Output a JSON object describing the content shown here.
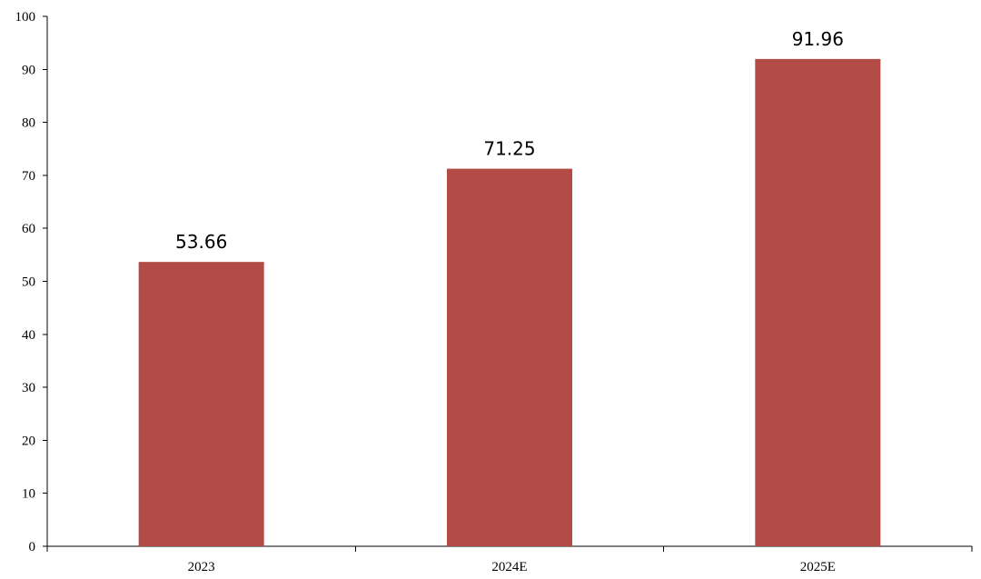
{
  "chart_data": {
    "type": "bar",
    "title": "",
    "xlabel": "",
    "ylabel": "",
    "categories": [
      "2023",
      "2024E",
      "2025E"
    ],
    "series": [
      {
        "values": [
          53.66,
          71.25,
          91.96
        ]
      }
    ],
    "data_labels": [
      "53.66",
      "71.25",
      "91.96"
    ],
    "ylim": [
      0,
      100
    ],
    "yticks": [
      0,
      10,
      20,
      30,
      40,
      50,
      60,
      70,
      80,
      90,
      100
    ],
    "grid": false,
    "legend": "none",
    "colors": {
      "bar": "#b24a46"
    }
  }
}
